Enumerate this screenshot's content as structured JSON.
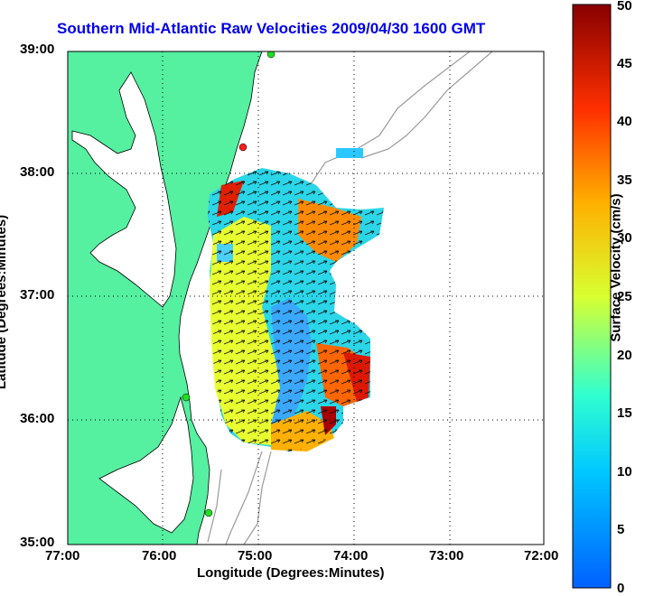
{
  "title": "Southern Mid-Atlantic Raw Velocities 2009/04/30 1600 GMT",
  "xlabel": "Longitude (Degrees:Minutes)",
  "ylabel": "Latitude (Degrees:Minutes)",
  "colorbar": {
    "label": "Surface Velocity (cm/s)",
    "min": 0,
    "max": 50,
    "ticks": [
      "0",
      "5",
      "10",
      "15",
      "20",
      "25",
      "30",
      "35",
      "40",
      "45",
      "50"
    ],
    "colormap": "jet"
  },
  "colors": {
    "land": "#55f0a0",
    "coast": "#000000",
    "bathymetry": "#999999",
    "grid": "#000000",
    "title": "#0000ee",
    "station_green": "#22dd22",
    "station_red": "#ee2222"
  },
  "chart_data": {
    "type": "heatmap",
    "title": "Southern Mid-Atlantic Raw Velocities 2009/04/30 1600 GMT",
    "xlabel": "Longitude (Degrees:Minutes)",
    "ylabel": "Latitude (Degrees:Minutes)",
    "xlim": [
      -77,
      -72
    ],
    "ylim": [
      35,
      39
    ],
    "x_tick_labels": [
      "77:00",
      "76:00",
      "75:00",
      "74:00",
      "73:00",
      "72:00"
    ],
    "y_tick_labels": [
      "35:00",
      "36:00",
      "37:00",
      "38:00",
      "39:00"
    ],
    "grid": "dotted",
    "stations": [
      {
        "lon": -74.88,
        "lat": 39.0,
        "color": "green"
      },
      {
        "lon": -75.15,
        "lat": 38.22,
        "color": "red"
      },
      {
        "lon": -75.72,
        "lat": 36.18,
        "color": "green"
      },
      {
        "lon": -75.52,
        "lat": 35.25,
        "color": "green"
      }
    ],
    "velocity_zones_cm_s": [
      {
        "region": "north near 38:00N 75:00W",
        "speed": 40
      },
      {
        "region": "northeast 37:40N 74:20W",
        "speed": 35
      },
      {
        "region": "west-central 37:00N 75:30W",
        "speed": 24
      },
      {
        "region": "center 36:50N 74:50W",
        "speed": 7
      },
      {
        "region": "southeast 36:30N 74:10W",
        "speed": 45
      },
      {
        "region": "south 36:00N 74:40W",
        "speed": 30
      },
      {
        "region": "isolated 38:10N 74:10W",
        "speed": 10
      }
    ]
  }
}
